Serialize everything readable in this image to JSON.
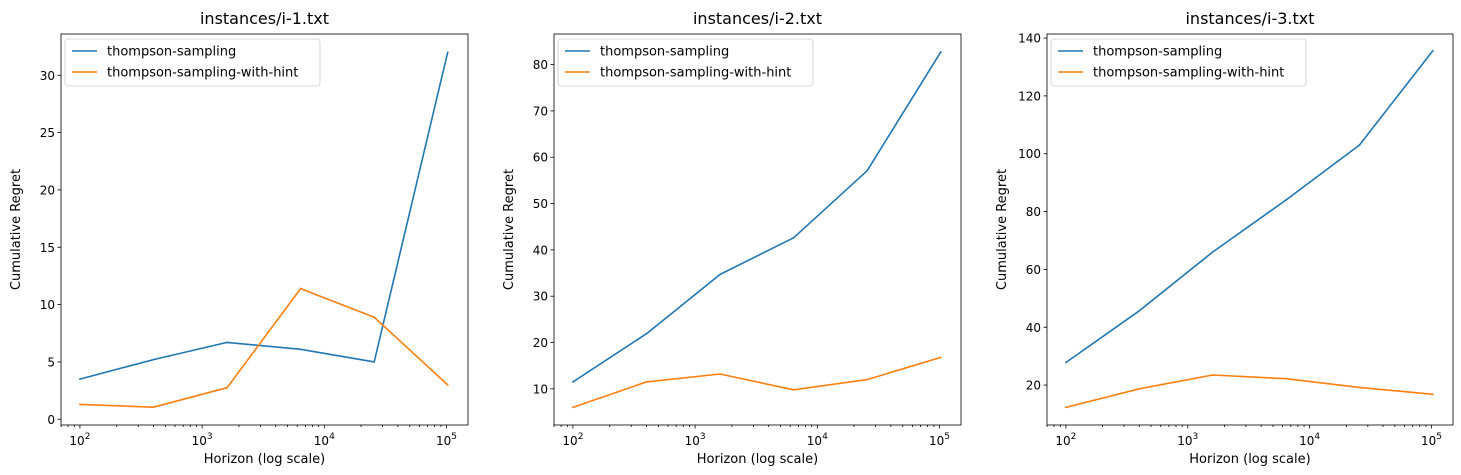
{
  "chart_data": [
    {
      "type": "line",
      "title": "instances/i-1.txt",
      "xlabel": "Horizon (log scale)",
      "ylabel": "Cumulative Regret",
      "xscale": "log",
      "xlim": [
        70,
        150000
      ],
      "ylim": [
        -0.5,
        33.6
      ],
      "yticks": [
        0,
        5,
        10,
        15,
        20,
        25,
        30
      ],
      "legend": "top-left",
      "grid": false,
      "x": [
        100,
        400,
        1600,
        6400,
        25600,
        102400
      ],
      "series": [
        {
          "name": "thompson-sampling",
          "color": "#1f77b4",
          "values": [
            3.5,
            5.2,
            6.7,
            6.1,
            5.0,
            32.0
          ]
        },
        {
          "name": "thompson-sampling-with-hint",
          "color": "#ff7f0e",
          "values": [
            1.3,
            1.05,
            2.75,
            11.4,
            8.9,
            3.0
          ]
        }
      ]
    },
    {
      "type": "line",
      "title": "instances/i-2.txt",
      "xlabel": "Horizon (log scale)",
      "ylabel": "Cumulative Regret",
      "xscale": "log",
      "xlim": [
        70,
        150000
      ],
      "ylim": [
        2.2,
        86.6
      ],
      "yticks": [
        10,
        20,
        30,
        40,
        50,
        60,
        70,
        80
      ],
      "legend": "top-left",
      "grid": false,
      "x": [
        100,
        400,
        1600,
        6400,
        25600,
        102400
      ],
      "series": [
        {
          "name": "thompson-sampling",
          "color": "#1f77b4",
          "values": [
            11.5,
            21.9,
            34.7,
            42.6,
            57.1,
            82.7
          ]
        },
        {
          "name": "thompson-sampling-with-hint",
          "color": "#ff7f0e",
          "values": [
            6.0,
            11.5,
            13.2,
            9.8,
            12.0,
            16.8
          ]
        }
      ]
    },
    {
      "type": "line",
      "title": "instances/i-3.txt",
      "xlabel": "Horizon (log scale)",
      "ylabel": "Cumulative Regret",
      "xscale": "log",
      "xlim": [
        70,
        150000
      ],
      "ylim": [
        6.2,
        141.4
      ],
      "yticks": [
        20,
        40,
        60,
        80,
        100,
        120,
        140
      ],
      "legend": "top-left",
      "grid": false,
      "x": [
        100,
        400,
        1600,
        6400,
        25600,
        102400
      ],
      "series": [
        {
          "name": "thompson-sampling",
          "color": "#1f77b4",
          "values": [
            27.8,
            45.7,
            66.0,
            84.0,
            103.0,
            135.6
          ]
        },
        {
          "name": "thompson-sampling-with-hint",
          "color": "#ff7f0e",
          "values": [
            12.3,
            18.7,
            23.5,
            22.2,
            19.2,
            16.8
          ]
        }
      ]
    }
  ]
}
